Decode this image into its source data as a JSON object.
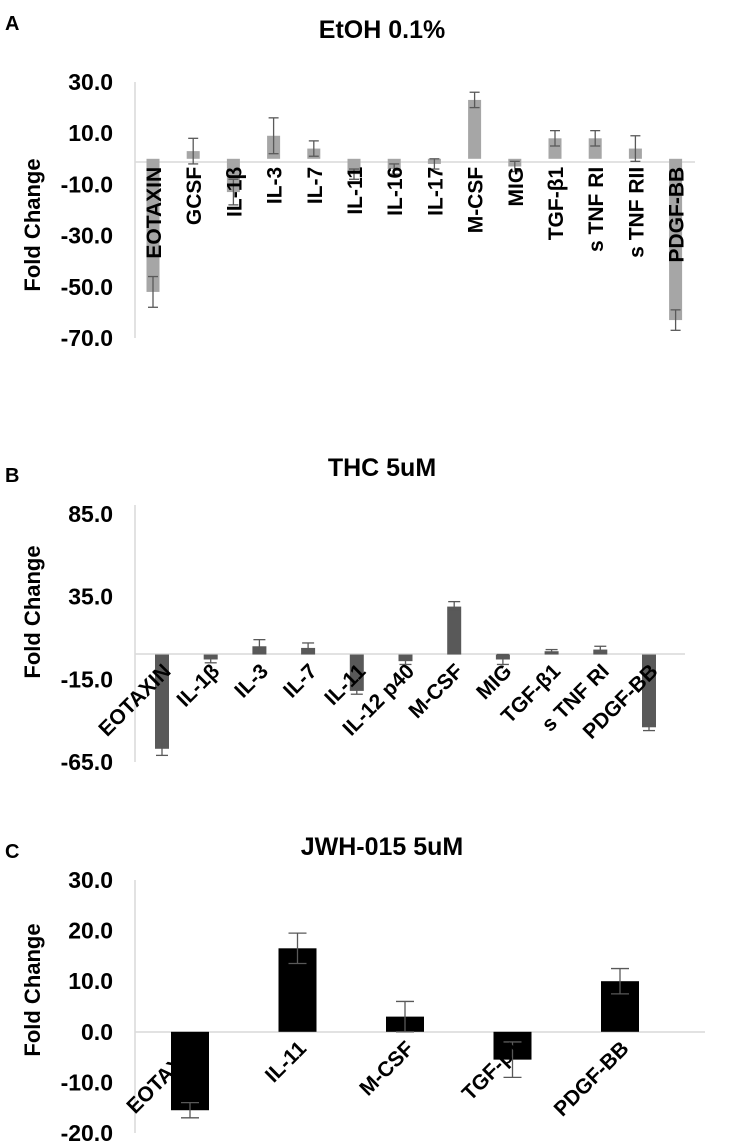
{
  "chart_data": [
    {
      "panel": "A",
      "type": "bar",
      "title": "EtOH 0.1%",
      "xlabel": "",
      "ylabel": "Fold Change",
      "ylim": [
        -70,
        30
      ],
      "yticks": [
        30,
        10,
        -10,
        -30,
        -50,
        -70
      ],
      "ytick_labels": [
        "30.0",
        "10.0",
        "-10.0",
        "-30.0",
        "-50.0",
        "-70.0"
      ],
      "bar_color": "#a6a6a6",
      "categories": [
        "EOTAXIN",
        "GCSF",
        "IL-1β",
        "IL-3",
        "IL-7",
        "IL-11",
        "IL-16",
        "IL-17",
        "M-CSF",
        "MIG",
        "TGF-β1",
        "s TNF RI",
        "s TNF RII",
        "PDGF-BB"
      ],
      "values": [
        -52,
        3,
        -13,
        9,
        4,
        -6,
        -4,
        -2,
        23,
        -3,
        8,
        8,
        4,
        -63
      ],
      "errors": [
        6,
        5,
        5,
        7,
        3,
        2,
        2,
        2,
        3,
        2,
        3,
        3,
        5,
        4
      ]
    },
    {
      "panel": "B",
      "type": "bar",
      "title": "THC 5uM",
      "xlabel": "",
      "ylabel": "Fold Change",
      "ylim": [
        -65,
        85
      ],
      "yticks": [
        85,
        35,
        -15,
        -65
      ],
      "ytick_labels": [
        "85.0",
        "35.0",
        "-15.0",
        "-65.0"
      ],
      "bar_color": "#595959",
      "categories": [
        "EOTAXIN",
        "IL-1β",
        "IL-3",
        "IL-7",
        "IL-11",
        "IL-12 p40",
        "M-CSF",
        "MIG",
        "TGF-β1",
        "s TNF RI",
        "PDGF-BB"
      ],
      "values": [
        -57,
        -3,
        5,
        4,
        -22,
        -4,
        29,
        -3,
        2,
        3,
        -44
      ],
      "errors": [
        4,
        2,
        4,
        3,
        2,
        2,
        3,
        3,
        1,
        2,
        2
      ]
    },
    {
      "panel": "C",
      "type": "bar",
      "title": "JWH-015 5uM",
      "xlabel": "",
      "ylabel": "Fold Change",
      "ylim": [
        -20,
        30
      ],
      "yticks": [
        30,
        20,
        10,
        0,
        -10,
        -20
      ],
      "ytick_labels": [
        "30.0",
        "20.0",
        "10.0",
        "0.0",
        "-10.0",
        "-20.0"
      ],
      "bar_color": "#000000",
      "categories": [
        "EOTAXIN",
        "IL-11",
        "M-CSF",
        "TGF-β1",
        "PDGF-BB"
      ],
      "values": [
        -15.5,
        16.5,
        3,
        -5.5,
        10
      ],
      "errors": [
        1.5,
        3,
        3,
        3.5,
        2.5
      ]
    }
  ]
}
